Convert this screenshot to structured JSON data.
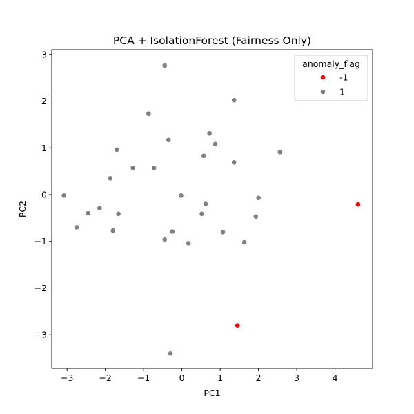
{
  "chart_data": {
    "type": "scatter",
    "title": "PCA + IsolationForest (Fairness Only)",
    "xlabel": "PC1",
    "ylabel": "PC2",
    "xlim": [
      -3.4,
      4.98
    ],
    "ylim": [
      -3.72,
      3.1
    ],
    "xticks": [
      -3,
      -2,
      -1,
      0,
      1,
      2,
      3,
      4
    ],
    "yticks": [
      -3,
      -2,
      -1,
      0,
      1,
      2,
      3
    ],
    "grid": false,
    "legend": {
      "title": "anomaly_flag",
      "placement": "top-right"
    },
    "series": [
      {
        "name": "-1",
        "color": "#ff0000",
        "points": [
          [
            4.6,
            -0.21
          ],
          [
            1.45,
            -2.8
          ]
        ]
      },
      {
        "name": "1",
        "color": "#808080",
        "points": [
          [
            -0.45,
            2.76
          ],
          [
            1.36,
            2.02
          ],
          [
            -0.87,
            1.73
          ],
          [
            0.72,
            1.31
          ],
          [
            -0.35,
            1.17
          ],
          [
            0.87,
            1.08
          ],
          [
            -1.7,
            0.96
          ],
          [
            2.56,
            0.91
          ],
          [
            0.57,
            0.83
          ],
          [
            1.36,
            0.69
          ],
          [
            -1.28,
            0.57
          ],
          [
            -0.73,
            0.57
          ],
          [
            -1.87,
            0.35
          ],
          [
            -3.08,
            -0.02
          ],
          [
            -0.02,
            -0.02
          ],
          [
            2.0,
            -0.07
          ],
          [
            0.62,
            -0.2
          ],
          [
            -2.15,
            -0.29
          ],
          [
            -2.45,
            -0.4
          ],
          [
            -1.66,
            -0.41
          ],
          [
            0.52,
            -0.41
          ],
          [
            1.93,
            -0.47
          ],
          [
            -2.75,
            -0.7
          ],
          [
            -1.8,
            -0.77
          ],
          [
            -0.25,
            -0.79
          ],
          [
            1.07,
            -0.8
          ],
          [
            -0.45,
            -0.96
          ],
          [
            1.63,
            -1.02
          ],
          [
            0.17,
            -1.04
          ],
          [
            -0.3,
            -3.4
          ]
        ]
      }
    ]
  }
}
